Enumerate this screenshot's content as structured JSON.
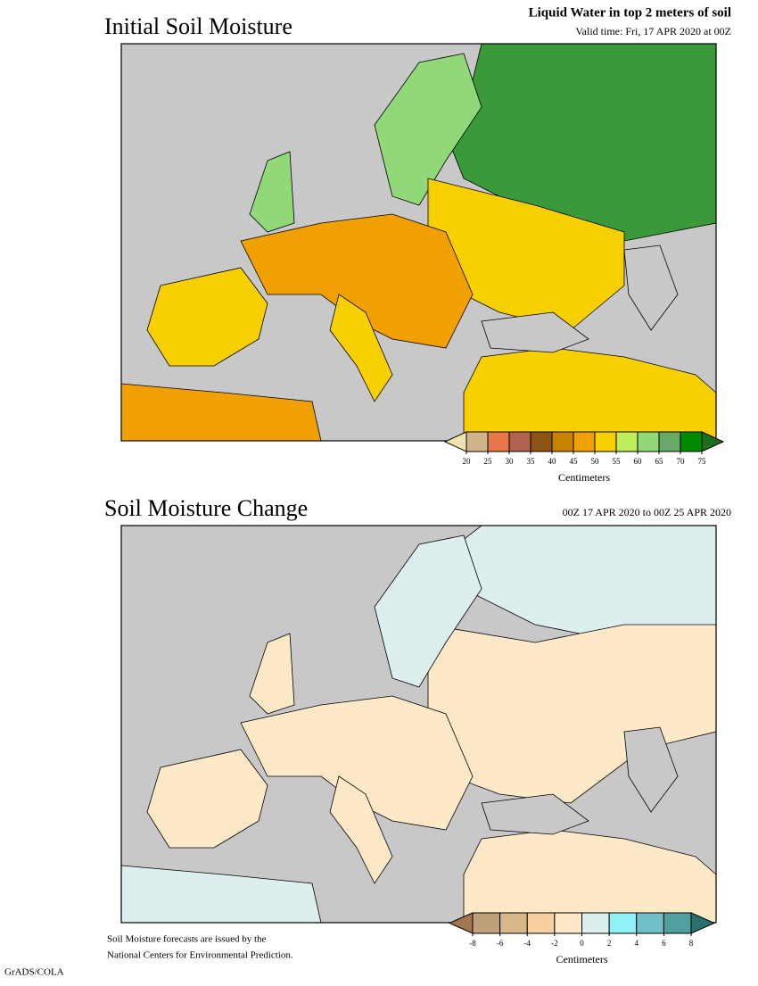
{
  "panels": [
    {
      "title": "Initial Soil Moisture",
      "subtitle": "Liquid Water in top 2 meters of soil",
      "valid": "Valid time: Fri, 17 APR 2020 at 00Z",
      "colorbar": {
        "under_color": "#f0e4b0",
        "over_color": "#1e6e1e",
        "colors": [
          "#d2b48c",
          "#e8784a",
          "#b06450",
          "#8b5414",
          "#c88200",
          "#f0a000",
          "#f8d000",
          "#c0ec60",
          "#90d878",
          "#68a868",
          "#008c00"
        ],
        "ticks": [
          20,
          25,
          30,
          35,
          40,
          45,
          50,
          55,
          60,
          65,
          70,
          75
        ],
        "unit": "Centimeters"
      }
    },
    {
      "title": "Soil Moisture Change",
      "subtitle": "00Z 17 APR 2020 to 00Z 25 APR 2020",
      "colorbar": {
        "under_color": "#a07850",
        "over_color": "#2a7070",
        "colors": [
          "#c0a07a",
          "#d8b888",
          "#f8d0a0",
          "#fde8c8",
          "#dceeee",
          "#90f0f8",
          "#70c0c8",
          "#50a0a0"
        ],
        "ticks": [
          -8,
          -6,
          -4,
          -2,
          0,
          2,
          4,
          6,
          8
        ],
        "unit": "Centimeters"
      }
    }
  ],
  "footer": [
    "Soil Moisture forecasts are issued by the",
    "National Centers for Environmental Prediction."
  ],
  "credit": "GrADS/COLA"
}
